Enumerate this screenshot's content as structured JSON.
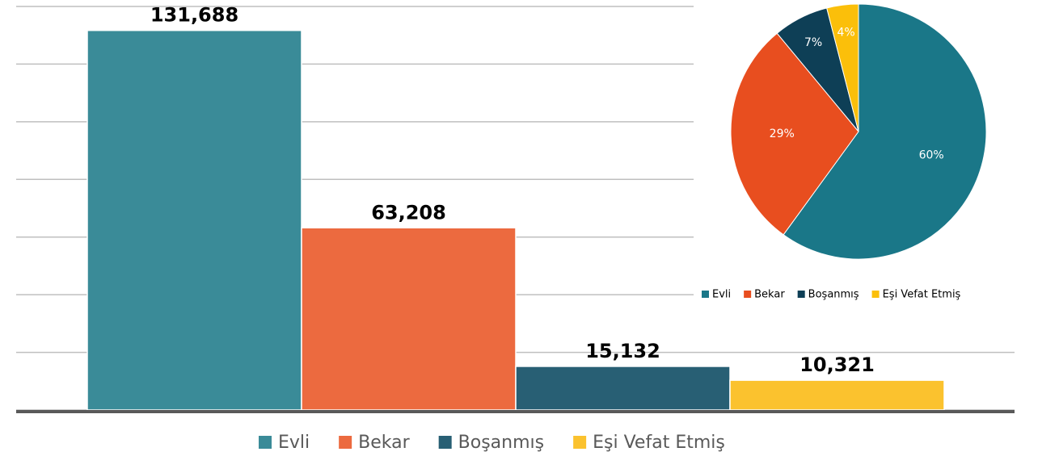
{
  "chart_data": [
    {
      "type": "bar",
      "categories": [
        "Evli",
        "Bekar",
        "Boşanmış",
        "Eşi Vefat Etmiş"
      ],
      "values": [
        131688,
        63208,
        15132,
        10321
      ],
      "value_labels": [
        "131,688",
        "63,208",
        "15,132",
        "10,321"
      ],
      "colors": [
        "#3a8b98",
        "#ec6a3f",
        "#285f74",
        "#fbc22e"
      ],
      "ylim": [
        0,
        140000
      ],
      "yticks": [
        0,
        20000,
        40000,
        60000,
        80000,
        100000,
        120000,
        140000
      ],
      "grid": true
    },
    {
      "type": "pie",
      "categories": [
        "Evli",
        "Bekar",
        "Boşanmış",
        "Eşi Vefat Etmiş"
      ],
      "values": [
        60,
        29,
        7,
        4
      ],
      "value_labels": [
        "60%",
        "29%",
        "7%",
        "4%"
      ],
      "colors": [
        "#1a7788",
        "#e84e1f",
        "#0e3f56",
        "#fbbf0a"
      ]
    }
  ]
}
